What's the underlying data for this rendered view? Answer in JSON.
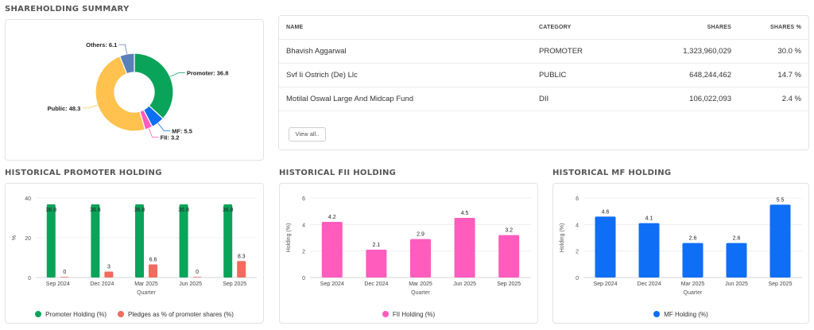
{
  "summary": {
    "title": "SHAREHOLDING SUMMARY",
    "table": {
      "headers": {
        "name": "NAME",
        "category": "CATEGORY",
        "shares": "SHARES",
        "pct": "SHARES %"
      },
      "rows": [
        {
          "name": "Bhavish Aggarwal",
          "category": "PROMOTER",
          "shares": "1,323,960,029",
          "pct": "30.0 %"
        },
        {
          "name": "Svf Ii Ostrich (De) Llc",
          "category": "PUBLIC",
          "shares": "648,244,462",
          "pct": "14.7 %"
        },
        {
          "name": "Motilal Oswal Large And Midcap Fund",
          "category": "DII",
          "shares": "106,022,093",
          "pct": "2.4 %"
        }
      ],
      "view_all_label": "View all.."
    }
  },
  "sections": {
    "promoter_title": "HISTORICAL PROMOTER HOLDING",
    "fii_title": "HISTORICAL FII HOLDING",
    "mf_title": "HISTORICAL MF HOLDING"
  },
  "colors": {
    "promoter": "#0aa35a",
    "pledge": "#f26b5e",
    "fii": "#ff5cbd",
    "mf": "#0e6ef5",
    "public": "#ffc24f",
    "others": "#5b7fb8"
  },
  "chart_data": [
    {
      "type": "pie",
      "labels": [
        "Promoter",
        "MF",
        "FII",
        "Public",
        "Others"
      ],
      "values": [
        36.8,
        5.5,
        3.2,
        48.3,
        6.1
      ],
      "slice_labels": [
        "Promoter: 36.8",
        "MF: 5.5",
        "FII: 3.2",
        "Public: 48.3",
        "Others: 6.1"
      ],
      "colors": [
        "#0aa35a",
        "#0e6ef5",
        "#ff5cbd",
        "#ffc24f",
        "#5b7fb8"
      ],
      "style": "donut"
    },
    {
      "type": "bar",
      "categories": [
        "Sep 2024",
        "Dec 2024",
        "Mar 2025",
        "Jun 2025",
        "Sep 2025"
      ],
      "series": [
        {
          "name": "Promoter Holding (%)",
          "values": [
            36.8,
            36.8,
            36.8,
            36.8,
            36.8
          ],
          "labels": [
            "36.8",
            "36.8",
            "36.8",
            "36.8",
            "36.8"
          ]
        },
        {
          "name": "Pledges as % of promoter shares (%)",
          "values": [
            0,
            3,
            6.6,
            0,
            8.3
          ],
          "labels": [
            "0",
            "3",
            "6.6",
            "0",
            "8.3"
          ]
        }
      ],
      "xlabel": "Quarter",
      "ylabel": "%",
      "ylim": [
        0,
        40
      ],
      "yticks": [
        "0",
        "20",
        "40"
      ],
      "ytick_values": [
        0,
        20,
        40
      ],
      "grid": true,
      "legend": "bottom"
    },
    {
      "type": "bar",
      "categories": [
        "Sep 2024",
        "Dec 2024",
        "Mar 2025",
        "Jun 2025",
        "Sep 2025"
      ],
      "series": [
        {
          "name": "FII Holding (%)",
          "values": [
            4.2,
            2.1,
            2.9,
            4.5,
            3.2
          ],
          "labels": [
            "4.2",
            "2.1",
            "2.9",
            "4.5",
            "3.2"
          ]
        }
      ],
      "xlabel": "Quarter",
      "ylabel": "Holding (%)",
      "ylim": [
        0,
        6
      ],
      "yticks": [
        "0",
        "2",
        "4",
        "6"
      ],
      "ytick_values": [
        0,
        2,
        4,
        6
      ],
      "grid": true,
      "legend": "bottom"
    },
    {
      "type": "bar",
      "categories": [
        "Sep 2024",
        "Dec 2024",
        "Mar 2025",
        "Jun 2025",
        "Sep 2025"
      ],
      "series": [
        {
          "name": "MF Holding (%)",
          "values": [
            4.6,
            4.1,
            2.6,
            2.6,
            5.5
          ],
          "labels": [
            "4.6",
            "4.1",
            "2.6",
            "2.6",
            "5.5"
          ]
        }
      ],
      "xlabel": "Quarter",
      "ylabel": "Holding (%)",
      "ylim": [
        0,
        6
      ],
      "yticks": [
        "0",
        "2",
        "4",
        "6"
      ],
      "ytick_values": [
        0,
        2,
        4,
        6
      ],
      "grid": true,
      "legend": "bottom"
    }
  ]
}
